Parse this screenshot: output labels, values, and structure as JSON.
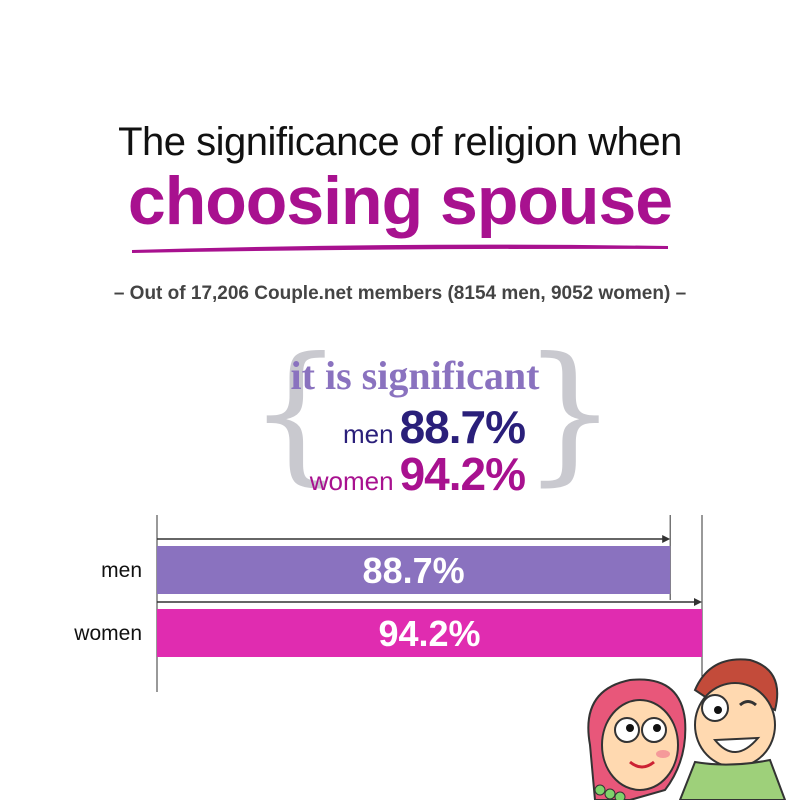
{
  "title": {
    "line1": "The significance of religion when",
    "line2": "choosing spouse"
  },
  "subtitle": "– Out of 17,206 Couple.net members (8154 men, 9052 women) –",
  "callout": {
    "heading": "it is significant",
    "men_label": "men",
    "men_value": "88.7%",
    "women_label": "women",
    "women_value": "94.2%"
  },
  "colors": {
    "title_accent": "#a8118f",
    "men_bar": "#8a72bf",
    "women_bar": "#e02cb0",
    "men_text": "#2a1f7a",
    "women_text": "#a8118f"
  },
  "chart_data": {
    "type": "bar",
    "orientation": "horizontal",
    "categories": [
      "men",
      "women"
    ],
    "values": [
      88.7,
      94.2
    ],
    "value_labels": [
      "88.7%",
      "94.2%"
    ],
    "xlim": [
      0,
      100
    ],
    "grid": false
  }
}
